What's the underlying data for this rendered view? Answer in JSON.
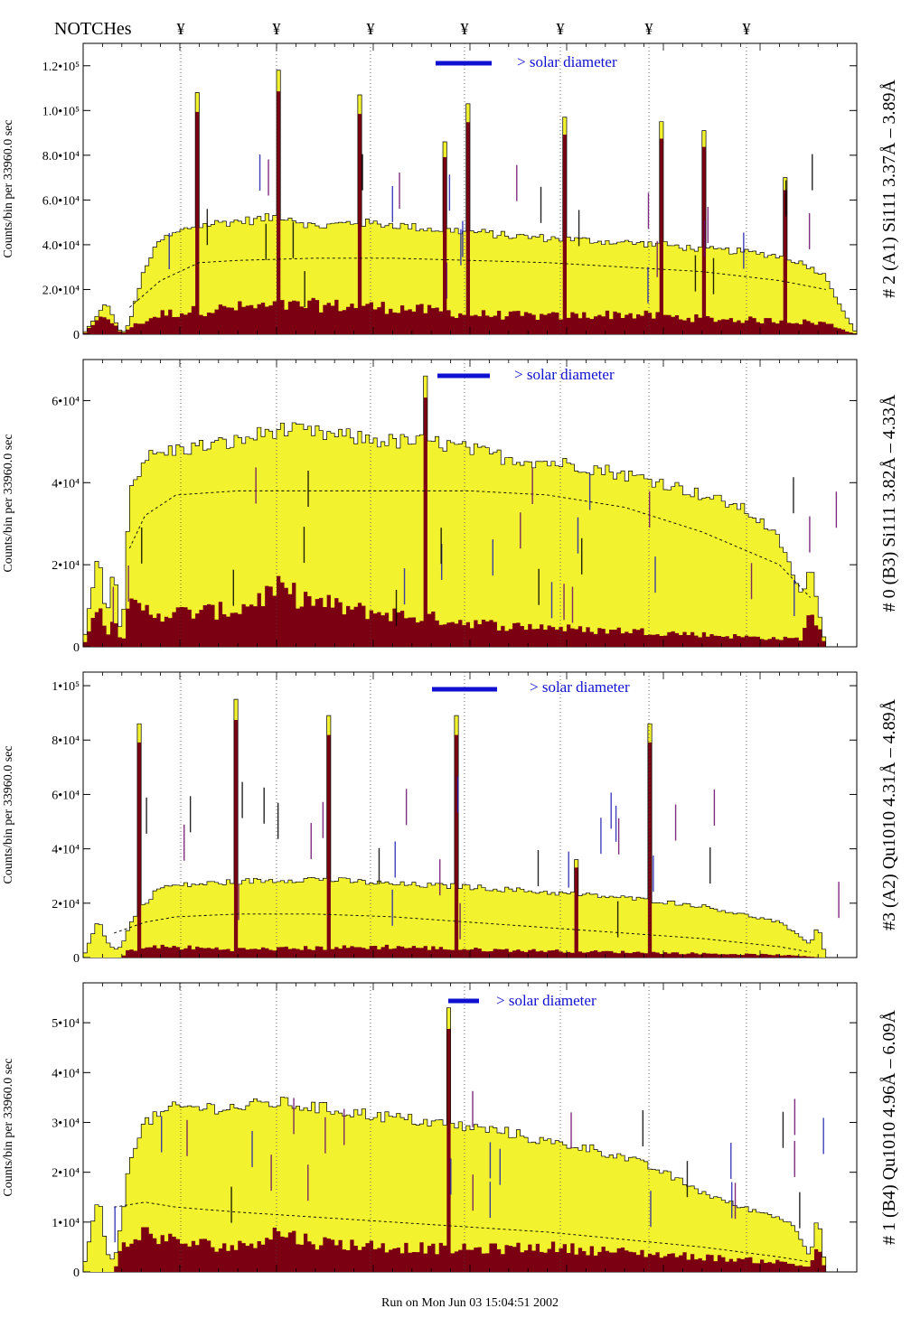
{
  "header": {
    "notches_label": "NOTCHes",
    "notch_symbol": "¥",
    "notch_count": 7
  },
  "footer": {
    "run_text": "Run on Mon Jun 03 15:04:51 2002"
  },
  "legend": {
    "solar_diameter_label": "> solar diameter"
  },
  "colors": {
    "fill_yellow": "#f2f22e",
    "fill_dark": "#7a0012",
    "bar_blue": "#1010d0",
    "line_annotation_black": "#000000",
    "annotation_blue": "#2020b0",
    "annotation_purple": "#6a0a6a"
  },
  "chart_data": [
    {
      "type": "area",
      "title": "",
      "ylabel": "Counts/bin per 33960.0 sec",
      "side_label": "# 2 (A1) Si111  3.37Å – 3.89Å",
      "ylim": [
        0,
        130000
      ],
      "yticks": [
        {
          "v": 0,
          "label": "0"
        },
        {
          "v": 20000,
          "label": "2.0•10⁴"
        },
        {
          "v": 40000,
          "label": "4.0•10⁴"
        },
        {
          "v": 60000,
          "label": "6.0•10⁴"
        },
        {
          "v": 80000,
          "label": "8.0•10⁴"
        },
        {
          "v": 100000,
          "label": "1.0•10⁵"
        },
        {
          "v": 120000,
          "label": "1.2•10⁵"
        }
      ],
      "series": [
        {
          "name": "",
          "role": "total",
          "x": [
            0,
            3,
            5,
            6,
            8,
            10,
            14,
            18,
            22,
            26,
            30,
            35,
            40,
            45,
            50,
            55,
            60,
            65,
            70,
            75,
            80,
            85,
            90,
            92,
            94,
            96,
            98,
            100
          ],
          "values": [
            0,
            14000,
            0,
            5000,
            30000,
            42000,
            48000,
            50000,
            51000,
            53000,
            48000,
            50000,
            49000,
            47000,
            46000,
            44000,
            43000,
            42000,
            41000,
            40000,
            38000,
            37000,
            35000,
            33000,
            30000,
            26000,
            12000,
            0
          ]
        },
        {
          "name": "",
          "role": "dark",
          "x": [
            0,
            3,
            5,
            6,
            10,
            20,
            30,
            40,
            50,
            60,
            70,
            80,
            90,
            96,
            100
          ],
          "values": [
            0,
            9000,
            0,
            3000,
            9000,
            12000,
            13000,
            12000,
            9000,
            8000,
            9000,
            7000,
            6000,
            5000,
            0
          ]
        },
        {
          "name": "",
          "role": "dashed",
          "x": [
            6,
            10,
            15,
            20,
            30,
            40,
            50,
            60,
            70,
            80,
            90,
            96
          ],
          "values": [
            12000,
            24000,
            32000,
            33000,
            34000,
            34000,
            33000,
            32000,
            30000,
            28000,
            24000,
            20000
          ]
        }
      ],
      "spikes": [
        {
          "x": 14.5,
          "value": 108000
        },
        {
          "x": 24.8,
          "value": 118000
        },
        {
          "x": 35.4,
          "value": 107000
        },
        {
          "x": 46.3,
          "value": 86000
        },
        {
          "x": 49.3,
          "value": 103000
        },
        {
          "x": 62.2,
          "value": 97000
        },
        {
          "x": 74.6,
          "value": 95000
        },
        {
          "x": 80.0,
          "value": 91000
        },
        {
          "x": 90.5,
          "value": 70000
        }
      ]
    },
    {
      "type": "area",
      "title": "",
      "ylabel": "Counts/bin per  33960.0 sec",
      "side_label": "# 0 (B3) Si111  3.82Å – 4.33Å",
      "ylim": [
        0,
        70000
      ],
      "yticks": [
        {
          "v": 0,
          "label": "0"
        },
        {
          "v": 20000,
          "label": "2•10⁴"
        },
        {
          "v": 40000,
          "label": "4•10⁴"
        },
        {
          "v": 60000,
          "label": "6•10⁴"
        }
      ],
      "series": [
        {
          "name": "",
          "role": "total",
          "x": [
            0,
            2,
            3,
            4,
            5,
            6,
            8,
            12,
            20,
            25,
            30,
            35,
            40,
            45,
            50,
            55,
            60,
            65,
            70,
            75,
            80,
            85,
            88,
            90,
            93,
            94,
            96,
            100
          ],
          "values": [
            0,
            24000,
            6000,
            20000,
            0,
            38000,
            46000,
            48000,
            50000,
            53000,
            52000,
            51000,
            50000,
            50000,
            48000,
            46000,
            45000,
            44000,
            42000,
            40000,
            37000,
            34000,
            30000,
            26000,
            12000,
            20000,
            0,
            0
          ]
        },
        {
          "name": "",
          "role": "dark",
          "x": [
            0,
            2,
            3,
            4,
            5,
            6,
            10,
            20,
            25,
            30,
            35,
            40,
            45,
            50,
            55,
            60,
            65,
            70,
            80,
            90,
            93,
            94,
            96,
            100
          ],
          "values": [
            0,
            12000,
            2000,
            10000,
            0,
            10000,
            8000,
            9000,
            14000,
            11000,
            9000,
            8000,
            7000,
            6000,
            5000,
            5000,
            4000,
            4000,
            3000,
            2000,
            2000,
            10000,
            0,
            0
          ]
        },
        {
          "name": "",
          "role": "dashed",
          "x": [
            6,
            8,
            12,
            20,
            30,
            40,
            50,
            60,
            70,
            80,
            90,
            94
          ],
          "values": [
            24000,
            32000,
            37000,
            38000,
            38000,
            38000,
            38000,
            37000,
            34000,
            28000,
            20000,
            12000
          ]
        }
      ],
      "spikes": [
        {
          "x": 43.8,
          "value": 66000
        }
      ]
    },
    {
      "type": "area",
      "title": "",
      "ylabel": "Counts/bin per  33960.0 sec",
      "side_label": "#3 (A2) Qu1010  4.31Å – 4.89Å",
      "ylim": [
        0,
        105000
      ],
      "yticks": [
        {
          "v": 0,
          "label": "0"
        },
        {
          "v": 20000,
          "label": "2•10⁴"
        },
        {
          "v": 40000,
          "label": "4•10⁴"
        },
        {
          "v": 60000,
          "label": "6•10⁴"
        },
        {
          "v": 80000,
          "label": "8•10⁴"
        },
        {
          "v": 100000,
          "label": "1•10⁵"
        }
      ],
      "series": [
        {
          "name": "",
          "role": "total",
          "x": [
            0,
            2,
            3,
            4,
            5,
            6,
            8,
            10,
            20,
            30,
            40,
            50,
            60,
            70,
            80,
            90,
            94,
            95,
            96,
            100
          ],
          "values": [
            0,
            14000,
            6000,
            3000,
            4000,
            12000,
            20000,
            26000,
            28000,
            29000,
            27000,
            26000,
            24000,
            22000,
            19000,
            13000,
            5000,
            12000,
            0,
            0
          ]
        },
        {
          "name": "",
          "role": "dark",
          "x": [
            0,
            5,
            6,
            10,
            20,
            30,
            40,
            50,
            60,
            70,
            80,
            90,
            96,
            100
          ],
          "values": [
            0,
            0,
            3000,
            4000,
            3000,
            3500,
            4000,
            3000,
            2500,
            2000,
            1500,
            1000,
            0,
            0
          ]
        },
        {
          "name": "",
          "role": "dashed",
          "x": [
            4,
            8,
            12,
            20,
            30,
            40,
            50,
            60,
            70,
            80,
            90,
            94
          ],
          "values": [
            9000,
            13000,
            15000,
            16000,
            16000,
            15000,
            13000,
            11000,
            9000,
            7000,
            4000,
            2000
          ]
        }
      ],
      "spikes": [
        {
          "x": 7.0,
          "value": 86000
        },
        {
          "x": 19.5,
          "value": 95000
        },
        {
          "x": 31.3,
          "value": 89000
        },
        {
          "x": 47.8,
          "value": 89000
        },
        {
          "x": 63.7,
          "value": 36000
        },
        {
          "x": 73.0,
          "value": 86000
        }
      ]
    },
    {
      "type": "area",
      "title": "",
      "ylabel": "Counts/bin per  33960.0 sec",
      "side_label": "# 1 (B4) Qu1010 4.96Å – 6.09Å",
      "ylim": [
        0,
        58000
      ],
      "yticks": [
        {
          "v": 0,
          "label": "0"
        },
        {
          "v": 10000,
          "label": "1•10⁴"
        },
        {
          "v": 20000,
          "label": "2•10⁴"
        },
        {
          "v": 30000,
          "label": "3•10⁴"
        },
        {
          "v": 40000,
          "label": "4•10⁴"
        },
        {
          "v": 50000,
          "label": "5•10⁴"
        }
      ],
      "series": [
        {
          "name": "",
          "role": "total",
          "x": [
            0,
            2,
            3,
            4,
            5,
            6,
            8,
            12,
            20,
            25,
            30,
            35,
            40,
            45,
            50,
            55,
            60,
            65,
            70,
            75,
            80,
            85,
            90,
            92,
            94,
            95,
            96,
            100
          ],
          "values": [
            0,
            16000,
            4000,
            2000,
            10000,
            23000,
            30000,
            33000,
            33000,
            34000,
            33000,
            32000,
            31000,
            30000,
            29000,
            28000,
            26000,
            25000,
            23000,
            20000,
            16000,
            13000,
            11000,
            9000,
            3000,
            12000,
            0,
            0
          ]
        },
        {
          "name": "",
          "role": "dark",
          "x": [
            0,
            4,
            5,
            8,
            12,
            20,
            25,
            30,
            40,
            50,
            60,
            70,
            80,
            90,
            94,
            95,
            96,
            100
          ],
          "values": [
            0,
            0,
            5000,
            8000,
            6000,
            5000,
            8000,
            6000,
            5000,
            4500,
            5000,
            4000,
            3000,
            2000,
            1000,
            6000,
            0,
            0
          ]
        },
        {
          "name": "",
          "role": "dashed",
          "x": [
            4,
            8,
            12,
            20,
            30,
            40,
            50,
            60,
            70,
            80,
            90,
            94
          ],
          "values": [
            13000,
            14000,
            13000,
            12000,
            11000,
            10000,
            9000,
            8000,
            6500,
            5000,
            3000,
            2000
          ]
        }
      ],
      "spikes": [
        {
          "x": 47.0,
          "value": 53000
        }
      ]
    }
  ]
}
